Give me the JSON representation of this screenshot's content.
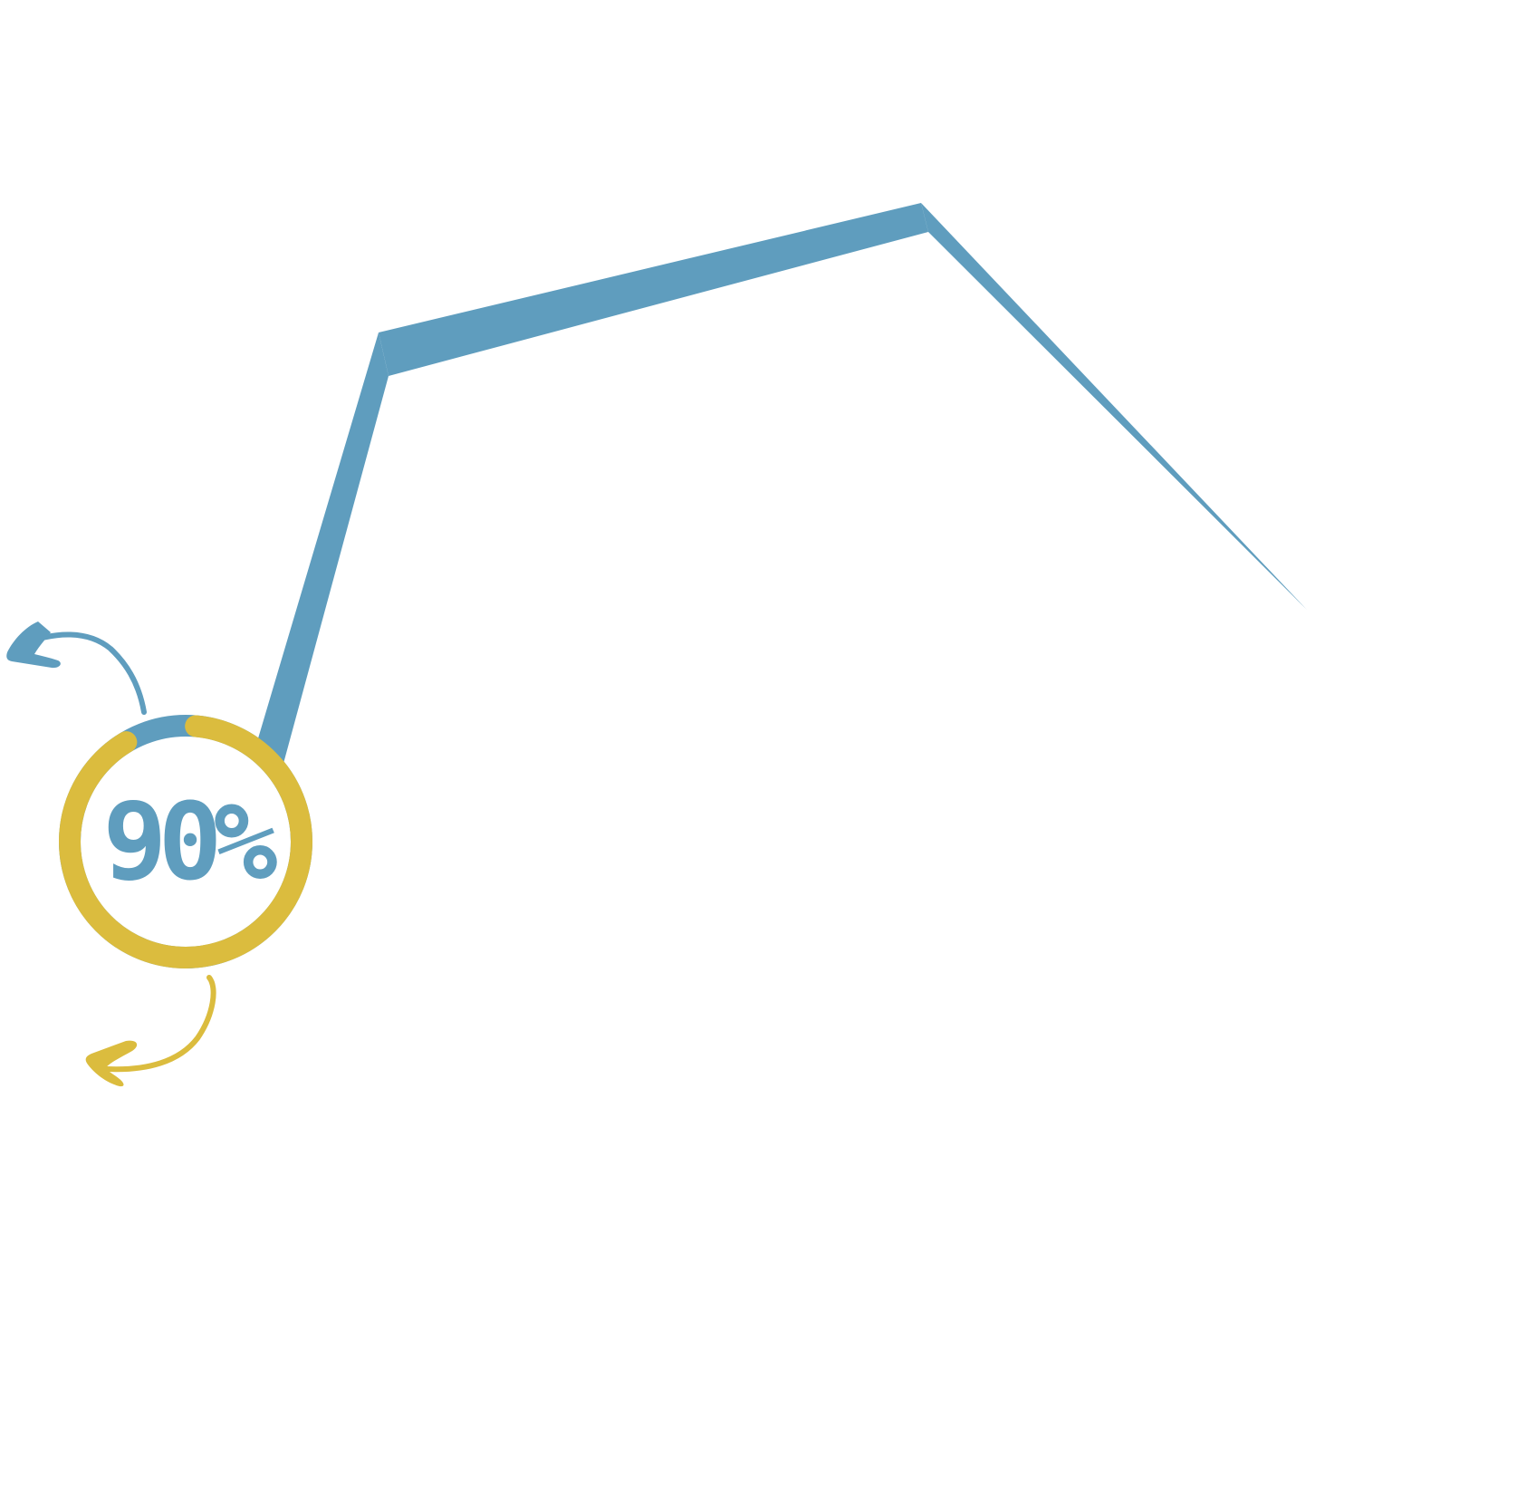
{
  "progress": {
    "label": "90%",
    "value_percent": 90
  },
  "colors": {
    "primary": "#5f9dbe",
    "accent": "#dbbc3e",
    "background": "#ffffff"
  },
  "icons": {
    "upper_arrow": "curved-arrow-left-icon",
    "lower_arrow": "curved-arrow-left-icon"
  }
}
